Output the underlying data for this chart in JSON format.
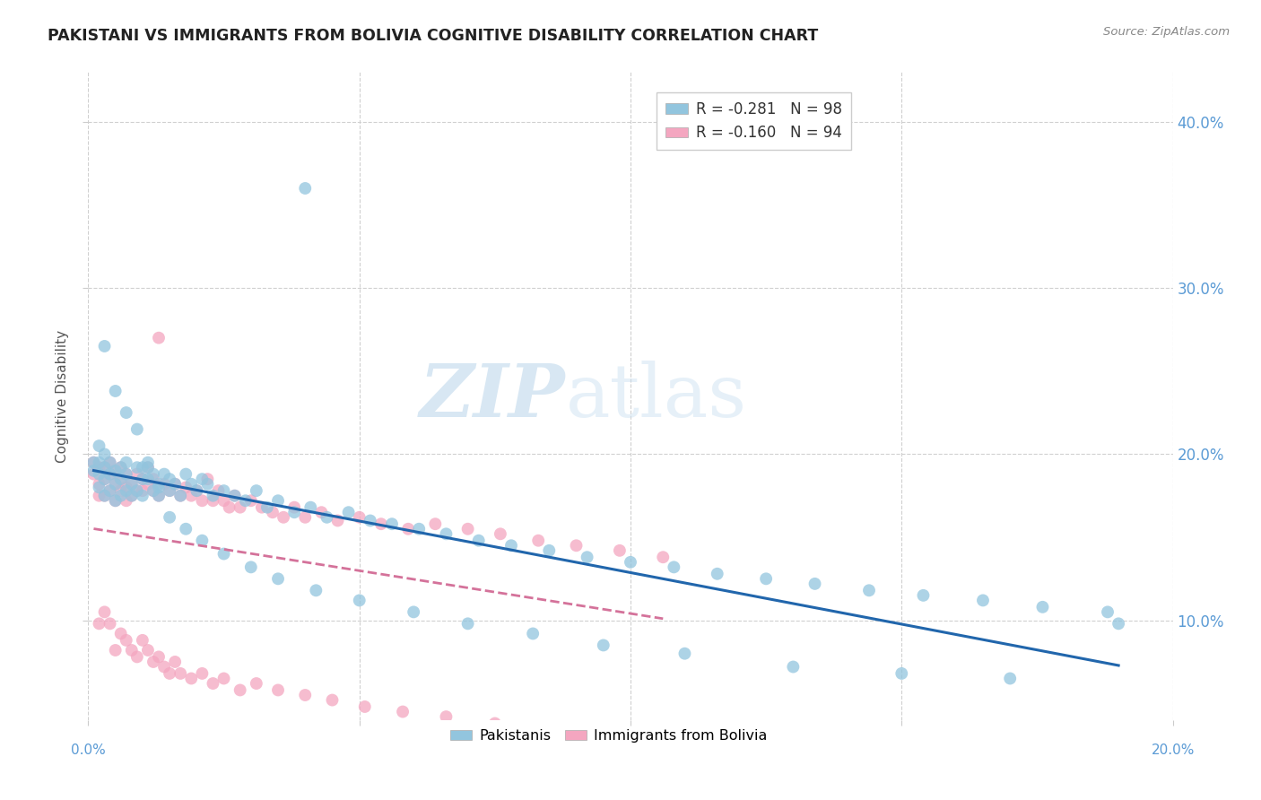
{
  "title": "PAKISTANI VS IMMIGRANTS FROM BOLIVIA COGNITIVE DISABILITY CORRELATION CHART",
  "source": "Source: ZipAtlas.com",
  "ylabel": "Cognitive Disability",
  "yticks": [
    "10.0%",
    "20.0%",
    "30.0%",
    "40.0%"
  ],
  "ytick_values": [
    0.1,
    0.2,
    0.3,
    0.4
  ],
  "xlim": [
    0.0,
    0.2
  ],
  "ylim": [
    0.04,
    0.43
  ],
  "legend_blue": "R = -0.281   N = 98",
  "legend_pink": "R = -0.160   N = 94",
  "group1_label": "Pakistanis",
  "group2_label": "Immigrants from Bolivia",
  "color_blue": "#92c5de",
  "color_pink": "#f4a6c0",
  "trendline_blue": "#2166ac",
  "trendline_pink": "#d4729a",
  "watermark_zip": "ZIP",
  "watermark_atlas": "atlas",
  "pakistanis_x": [
    0.001,
    0.001,
    0.002,
    0.002,
    0.002,
    0.002,
    0.003,
    0.003,
    0.003,
    0.003,
    0.004,
    0.004,
    0.004,
    0.005,
    0.005,
    0.005,
    0.006,
    0.006,
    0.006,
    0.007,
    0.007,
    0.007,
    0.008,
    0.008,
    0.009,
    0.009,
    0.01,
    0.01,
    0.01,
    0.011,
    0.011,
    0.012,
    0.012,
    0.013,
    0.013,
    0.014,
    0.015,
    0.015,
    0.016,
    0.017,
    0.018,
    0.019,
    0.02,
    0.021,
    0.022,
    0.023,
    0.025,
    0.027,
    0.029,
    0.031,
    0.033,
    0.035,
    0.038,
    0.041,
    0.044,
    0.048,
    0.052,
    0.056,
    0.061,
    0.066,
    0.072,
    0.078,
    0.085,
    0.092,
    0.1,
    0.108,
    0.116,
    0.125,
    0.134,
    0.144,
    0.154,
    0.165,
    0.176,
    0.188,
    0.003,
    0.005,
    0.007,
    0.009,
    0.011,
    0.013,
    0.015,
    0.018,
    0.021,
    0.025,
    0.03,
    0.035,
    0.042,
    0.05,
    0.06,
    0.07,
    0.082,
    0.095,
    0.11,
    0.13,
    0.15,
    0.17,
    0.19,
    0.04
  ],
  "pakistanis_y": [
    0.19,
    0.195,
    0.188,
    0.18,
    0.195,
    0.205,
    0.185,
    0.192,
    0.175,
    0.2,
    0.188,
    0.178,
    0.195,
    0.182,
    0.19,
    0.172,
    0.185,
    0.192,
    0.175,
    0.188,
    0.178,
    0.195,
    0.182,
    0.175,
    0.192,
    0.178,
    0.185,
    0.192,
    0.175,
    0.185,
    0.192,
    0.178,
    0.188,
    0.175,
    0.182,
    0.188,
    0.185,
    0.178,
    0.182,
    0.175,
    0.188,
    0.182,
    0.178,
    0.185,
    0.182,
    0.175,
    0.178,
    0.175,
    0.172,
    0.178,
    0.168,
    0.172,
    0.165,
    0.168,
    0.162,
    0.165,
    0.16,
    0.158,
    0.155,
    0.152,
    0.148,
    0.145,
    0.142,
    0.138,
    0.135,
    0.132,
    0.128,
    0.125,
    0.122,
    0.118,
    0.115,
    0.112,
    0.108,
    0.105,
    0.265,
    0.238,
    0.225,
    0.215,
    0.195,
    0.18,
    0.162,
    0.155,
    0.148,
    0.14,
    0.132,
    0.125,
    0.118,
    0.112,
    0.105,
    0.098,
    0.092,
    0.085,
    0.08,
    0.072,
    0.068,
    0.065,
    0.098,
    0.36
  ],
  "bolivia_x": [
    0.001,
    0.001,
    0.002,
    0.002,
    0.002,
    0.003,
    0.003,
    0.003,
    0.004,
    0.004,
    0.004,
    0.005,
    0.005,
    0.005,
    0.006,
    0.006,
    0.006,
    0.007,
    0.007,
    0.007,
    0.008,
    0.008,
    0.009,
    0.009,
    0.01,
    0.01,
    0.011,
    0.011,
    0.012,
    0.012,
    0.013,
    0.013,
    0.014,
    0.015,
    0.016,
    0.017,
    0.018,
    0.019,
    0.02,
    0.021,
    0.022,
    0.023,
    0.024,
    0.025,
    0.026,
    0.027,
    0.028,
    0.03,
    0.032,
    0.034,
    0.036,
    0.038,
    0.04,
    0.043,
    0.046,
    0.05,
    0.054,
    0.059,
    0.064,
    0.07,
    0.076,
    0.083,
    0.09,
    0.098,
    0.106,
    0.002,
    0.003,
    0.004,
    0.005,
    0.006,
    0.007,
    0.008,
    0.009,
    0.01,
    0.011,
    0.012,
    0.013,
    0.014,
    0.015,
    0.016,
    0.017,
    0.019,
    0.021,
    0.023,
    0.025,
    0.028,
    0.031,
    0.035,
    0.04,
    0.045,
    0.051,
    0.058,
    0.066,
    0.075
  ],
  "bolivia_y": [
    0.188,
    0.195,
    0.182,
    0.192,
    0.175,
    0.185,
    0.192,
    0.175,
    0.188,
    0.178,
    0.195,
    0.182,
    0.19,
    0.172,
    0.185,
    0.178,
    0.192,
    0.18,
    0.172,
    0.188,
    0.182,
    0.175,
    0.188,
    0.178,
    0.185,
    0.178,
    0.182,
    0.192,
    0.178,
    0.185,
    0.27,
    0.175,
    0.182,
    0.178,
    0.182,
    0.175,
    0.18,
    0.175,
    0.178,
    0.172,
    0.185,
    0.172,
    0.178,
    0.172,
    0.168,
    0.175,
    0.168,
    0.172,
    0.168,
    0.165,
    0.162,
    0.168,
    0.162,
    0.165,
    0.16,
    0.162,
    0.158,
    0.155,
    0.158,
    0.155,
    0.152,
    0.148,
    0.145,
    0.142,
    0.138,
    0.098,
    0.105,
    0.098,
    0.082,
    0.092,
    0.088,
    0.082,
    0.078,
    0.088,
    0.082,
    0.075,
    0.078,
    0.072,
    0.068,
    0.075,
    0.068,
    0.065,
    0.068,
    0.062,
    0.065,
    0.058,
    0.062,
    0.058,
    0.055,
    0.052,
    0.048,
    0.045,
    0.042,
    0.038
  ]
}
